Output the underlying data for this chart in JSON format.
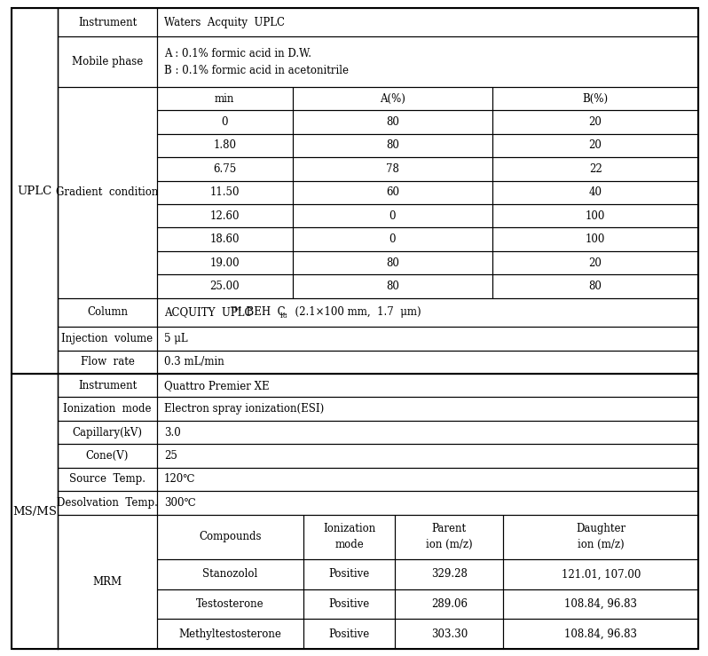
{
  "bg_color": "#ffffff",
  "font_size": 8.5,
  "uplc_label": "UPLC",
  "msms_label": "MS/MS",
  "gradient_headers": [
    "min",
    "A(%)",
    "B(%)"
  ],
  "gradient_rows": [
    [
      "0",
      "80",
      "20"
    ],
    [
      "1.80",
      "80",
      "20"
    ],
    [
      "6.75",
      "78",
      "22"
    ],
    [
      "11.50",
      "60",
      "40"
    ],
    [
      "12.60",
      "0",
      "100"
    ],
    [
      "18.60",
      "0",
      "100"
    ],
    [
      "19.00",
      "80",
      "20"
    ],
    [
      "25.00",
      "80",
      "80"
    ]
  ],
  "mrm_headers": [
    "Compounds",
    "Ionization\nmode",
    "Parent\nion (m/z)",
    "Daughter\nion (m/z)"
  ],
  "mrm_rows": [
    [
      "Stanozolol",
      "Positive",
      "329.28",
      "121.01, 107.00"
    ],
    [
      "Testosterone",
      "Positive",
      "289.06",
      "108.84, 96.83"
    ],
    [
      "Methyltestosterone",
      "Positive",
      "303.30",
      "108.84, 96.83"
    ]
  ],
  "mobile_phase_a": "A : 0.1% formic acid in D.W.",
  "mobile_phase_b": "B : 0.1% formic acid in acetonitrile",
  "column_text": "ACQUITY UPLC",
  "column_sup": "TM",
  "column_mid": " BEH C",
  "column_sub": "18",
  "column_end": " (2.1×100 mm, 1.7 μm)",
  "injection": "5 μL",
  "flow_rate": "0.3 mL/min",
  "ms_instrument": "Quattro Premier XE",
  "ionization_mode": "Electron spray ionization(ESI)",
  "capillary": "3.0",
  "cone": "25",
  "source_temp": "120℃",
  "desolv_temp": "300℃"
}
